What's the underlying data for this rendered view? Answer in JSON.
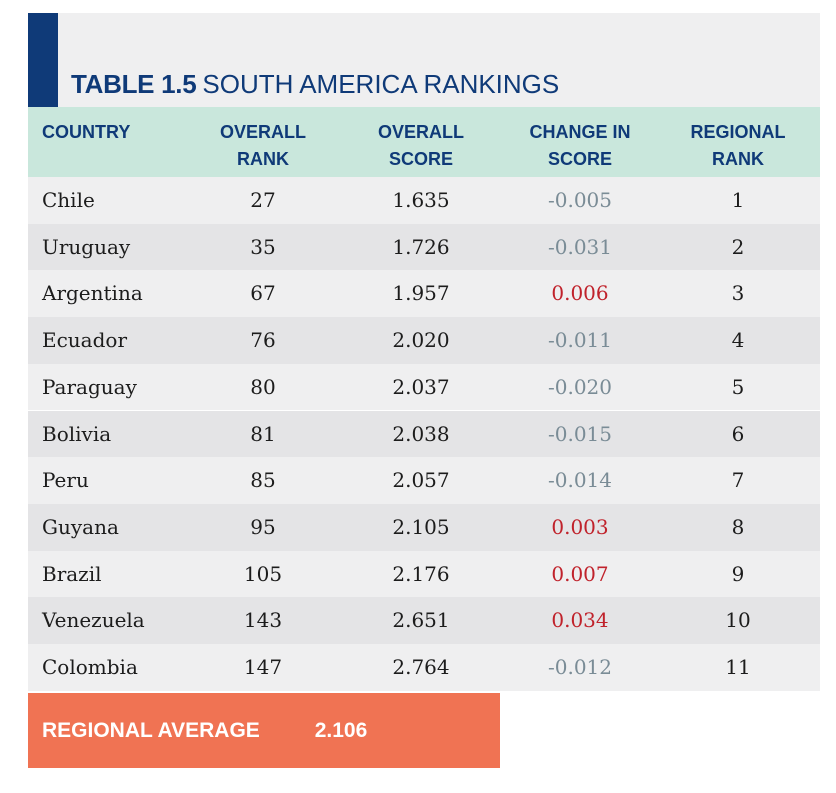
{
  "title": {
    "label": "TABLE 1.5",
    "text": "SOUTH AMERICA RANKINGS"
  },
  "columns": [
    "COUNTRY",
    "OVERALL\nRANK",
    "OVERALL\nSCORE",
    "CHANGE IN\nSCORE",
    "REGIONAL\nRANK"
  ],
  "rows": [
    {
      "country": "Chile",
      "overall_rank": "27",
      "overall_score": "1.635",
      "change": "-0.005",
      "regional_rank": "1"
    },
    {
      "country": "Uruguay",
      "overall_rank": "35",
      "overall_score": "1.726",
      "change": "-0.031",
      "regional_rank": "2"
    },
    {
      "country": "Argentina",
      "overall_rank": "67",
      "overall_score": "1.957",
      "change": "0.006",
      "regional_rank": "3"
    },
    {
      "country": "Ecuador",
      "overall_rank": "76",
      "overall_score": "2.020",
      "change": "-0.011",
      "regional_rank": "4"
    },
    {
      "country": "Paraguay",
      "overall_rank": "80",
      "overall_score": "2.037",
      "change": "-0.020",
      "regional_rank": "5"
    },
    {
      "country": "Bolivia",
      "overall_rank": "81",
      "overall_score": "2.038",
      "change": "-0.015",
      "regional_rank": "6"
    },
    {
      "country": "Peru",
      "overall_rank": "85",
      "overall_score": "2.057",
      "change": "-0.014",
      "regional_rank": "7"
    },
    {
      "country": "Guyana",
      "overall_rank": "95",
      "overall_score": "2.105",
      "change": "0.003",
      "regional_rank": "8"
    },
    {
      "country": "Brazil",
      "overall_rank": "105",
      "overall_score": "2.176",
      "change": "0.007",
      "regional_rank": "9"
    },
    {
      "country": "Venezuela",
      "overall_rank": "143",
      "overall_score": "2.651",
      "change": "0.034",
      "regional_rank": "10"
    },
    {
      "country": "Colombia",
      "overall_rank": "147",
      "overall_score": "2.764",
      "change": "-0.012",
      "regional_rank": "11"
    }
  ],
  "regional_average": {
    "label": "REGIONAL AVERAGE",
    "value": "2.106"
  },
  "colors": {
    "navy": "#0f3a78",
    "header_bg": "#c9e7dc",
    "negative_change": "#7a8c96",
    "positive_change": "#c0222b",
    "average_bg": "#f07353"
  }
}
